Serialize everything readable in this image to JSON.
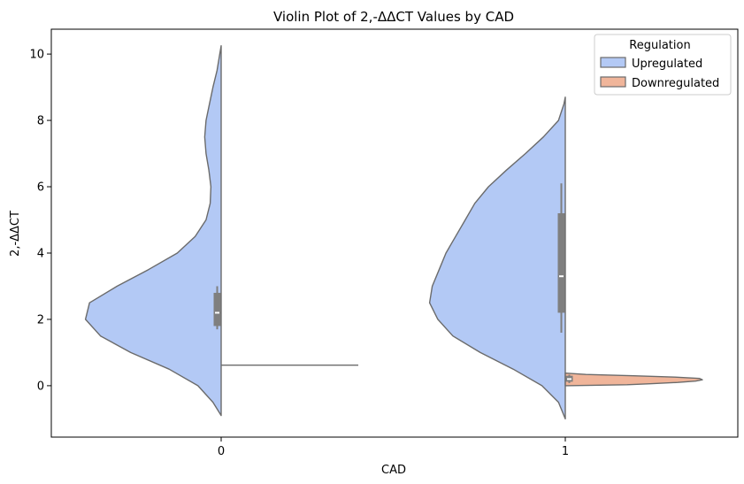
{
  "chart_data": {
    "type": "violin",
    "title": "Violin Plot of 2,-ΔΔCT Values by CAD",
    "xlabel": "CAD",
    "ylabel": "2,-ΔΔCT",
    "categories": [
      "0",
      "1"
    ],
    "ylim": [
      -1.55,
      10.75
    ],
    "yticks": [
      0,
      2,
      4,
      6,
      8,
      10
    ],
    "grid": false,
    "legend": {
      "title": "Regulation",
      "placement": "top-right",
      "entries": [
        "Upregulated",
        "Downregulated"
      ]
    },
    "series": [
      {
        "name": "Upregulated",
        "side": "left",
        "color": "#b3c9f5",
        "groups": [
          {
            "category": "0",
            "y_range": [
              -0.9,
              10.25
            ],
            "density": [
              [
                -0.9,
                0.0
              ],
              [
                -0.5,
                0.06
              ],
              [
                0,
                0.17
              ],
              [
                0.5,
                0.38
              ],
              [
                1,
                0.66
              ],
              [
                1.5,
                0.88
              ],
              [
                2,
                0.99
              ],
              [
                2.5,
                0.96
              ],
              [
                3,
                0.76
              ],
              [
                3.5,
                0.53
              ],
              [
                4,
                0.32
              ],
              [
                4.5,
                0.19
              ],
              [
                5,
                0.11
              ],
              [
                5.5,
                0.08
              ],
              [
                6,
                0.075
              ],
              [
                6.5,
                0.09
              ],
              [
                7,
                0.11
              ],
              [
                7.5,
                0.12
              ],
              [
                8,
                0.11
              ],
              [
                8.5,
                0.085
              ],
              [
                9,
                0.06
              ],
              [
                9.5,
                0.03
              ],
              [
                10,
                0.01
              ],
              [
                10.25,
                0.0
              ]
            ],
            "box": {
              "q1": 1.8,
              "median": 2.2,
              "q3": 2.8,
              "whisker_low": 1.7,
              "whisker_high": 3.0
            }
          },
          {
            "category": "1",
            "y_range": [
              -1.0,
              8.7
            ],
            "density": [
              [
                -1,
                0.0
              ],
              [
                -0.5,
                0.05
              ],
              [
                0,
                0.17
              ],
              [
                0.5,
                0.38
              ],
              [
                1,
                0.62
              ],
              [
                1.5,
                0.82
              ],
              [
                2,
                0.93
              ],
              [
                2.5,
                0.99
              ],
              [
                3,
                0.97
              ],
              [
                3.5,
                0.92
              ],
              [
                4,
                0.87
              ],
              [
                4.5,
                0.8
              ],
              [
                5,
                0.73
              ],
              [
                5.5,
                0.66
              ],
              [
                6,
                0.56
              ],
              [
                6.5,
                0.43
              ],
              [
                7,
                0.29
              ],
              [
                7.5,
                0.16
              ],
              [
                8,
                0.05
              ],
              [
                8.5,
                0.01
              ],
              [
                8.7,
                0.0
              ]
            ],
            "box": {
              "q1": 2.2,
              "median": 3.3,
              "q3": 5.2,
              "whisker_low": 1.6,
              "whisker_high": 6.1
            }
          }
        ]
      },
      {
        "name": "Downregulated",
        "side": "right",
        "color": "#f0b59a",
        "groups": [
          {
            "category": "0",
            "y_value": 0.62,
            "degenerate": true
          },
          {
            "category": "1",
            "y_range": [
              0.0,
              0.38
            ],
            "density": [
              [
                0,
                0.0
              ],
              [
                0.03,
                0.45
              ],
              [
                0.06,
                0.62
              ],
              [
                0.1,
                0.82
              ],
              [
                0.14,
                0.95
              ],
              [
                0.18,
                1.0
              ],
              [
                0.22,
                0.98
              ],
              [
                0.26,
                0.8
              ],
              [
                0.3,
                0.5
              ],
              [
                0.34,
                0.15
              ],
              [
                0.38,
                0.0
              ]
            ],
            "box": {
              "q1": 0.12,
              "median": 0.2,
              "q3": 0.3,
              "whisker_low": 0.08,
              "whisker_high": 0.33
            }
          }
        ]
      }
    ]
  }
}
